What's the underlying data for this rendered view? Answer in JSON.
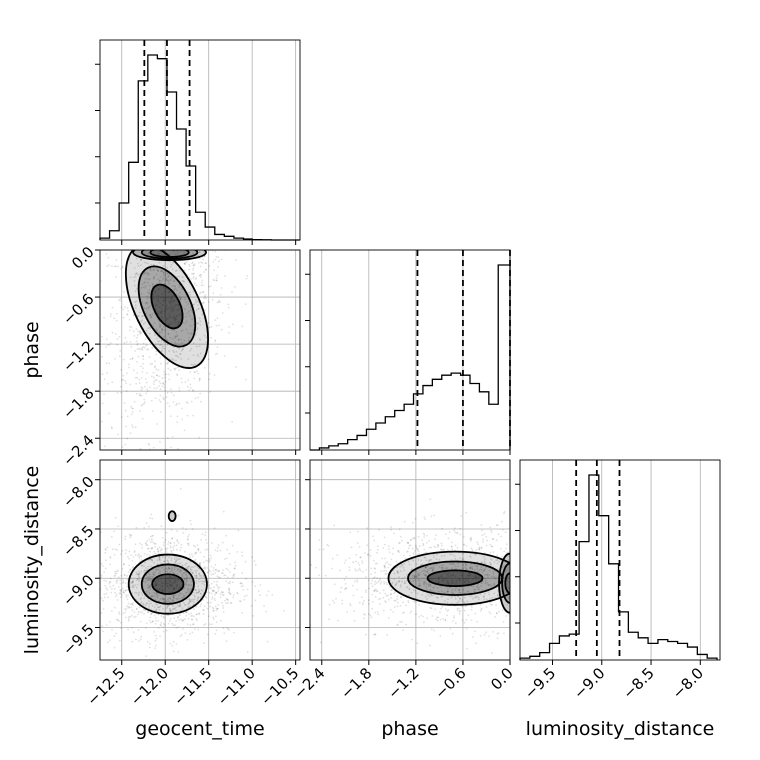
{
  "chart_data": {
    "type": "corner",
    "parameters": [
      "geocent_time",
      "phase",
      "luminosity_distance"
    ],
    "ranges": {
      "geocent_time": [
        -12.75,
        -10.45
      ],
      "phase": [
        -2.55,
        0.0
      ],
      "luminosity_distance": [
        -9.83,
        -7.8
      ]
    },
    "ticks": {
      "geocent_time": [
        "−12.5",
        "−12.0",
        "−11.5",
        "−11.0",
        "−10.5"
      ],
      "phase": [
        "−2.4",
        "−1.8",
        "−1.2",
        "−0.6",
        "0.0"
      ],
      "luminosity_distance": [
        "−9.5",
        "−9.0",
        "−8.5",
        "−8.0"
      ]
    },
    "tick_values": {
      "geocent_time": [
        -12.5,
        -12.0,
        -11.5,
        -11.0,
        -10.5
      ],
      "phase": [
        -2.4,
        -1.8,
        -1.2,
        -0.6,
        0.0
      ],
      "luminosity_distance": [
        -9.5,
        -9.0,
        -8.5,
        -8.0
      ]
    },
    "quantiles": {
      "geocent_time": [
        -12.24,
        -11.98,
        -11.72
      ],
      "phase": [
        -1.18,
        -0.6,
        0.0
      ],
      "luminosity_distance": [
        -9.26,
        -9.05,
        -8.82
      ]
    },
    "histograms": {
      "geocent_time": {
        "edges": [
          -12.75,
          -12.64,
          -12.53,
          -12.42,
          -12.31,
          -12.2,
          -12.09,
          -11.98,
          -11.87,
          -11.76,
          -11.65,
          -11.54,
          -11.43,
          -11.32,
          -11.21,
          -11.1,
          -11.0,
          -10.89,
          -10.78,
          -10.67,
          -10.56,
          -10.45
        ],
        "counts": [
          1,
          5,
          20,
          42,
          86,
          100,
          98,
          80,
          60,
          40,
          15,
          7,
          3,
          2,
          1,
          0.5,
          0.2,
          0.1,
          0,
          0,
          0
        ]
      },
      "phase": {
        "edges": [
          -2.55,
          -2.43,
          -2.31,
          -2.19,
          -2.07,
          -1.95,
          -1.83,
          -1.71,
          -1.59,
          -1.47,
          -1.35,
          -1.23,
          -1.11,
          -0.99,
          -0.87,
          -0.75,
          -0.63,
          -0.51,
          -0.39,
          -0.27,
          -0.15,
          0.0
        ],
        "counts": [
          0,
          1,
          2,
          3,
          5,
          7,
          10,
          13,
          16,
          19,
          22,
          27,
          31,
          34,
          36,
          37,
          36,
          32,
          28,
          22,
          89
        ]
      },
      "luminosity_distance": {
        "edges": [
          -9.83,
          -9.73,
          -9.63,
          -9.53,
          -9.43,
          -9.33,
          -9.23,
          -9.13,
          -9.03,
          -8.93,
          -8.83,
          -8.73,
          -8.63,
          -8.53,
          -8.43,
          -8.33,
          -8.23,
          -8.13,
          -8.03,
          -7.93,
          -7.83
        ],
        "counts": [
          1,
          2,
          4,
          9,
          13,
          14,
          64,
          100,
          78,
          52,
          26,
          15,
          12,
          9,
          11,
          10,
          9,
          7,
          3,
          1
        ]
      }
    },
    "contours_2d": [
      {
        "x": "geocent_time",
        "y": "phase",
        "center": [
          -11.98,
          -0.72
        ],
        "level_sizes": [
          [
            0.15,
            0.3
          ],
          [
            0.27,
            0.55
          ],
          [
            0.37,
            0.85
          ]
        ],
        "tilt": 0.65,
        "extra_contours": [
          {
            "center": [
              -11.95,
              -0.03
            ],
            "sizes": [
              [
                0.22,
                0.06
              ],
              [
                0.32,
                0.08
              ],
              [
                0.42,
                0.1
              ]
            ]
          }
        ]
      },
      {
        "x": "geocent_time",
        "y": "luminosity_distance",
        "center": [
          -11.97,
          -9.06
        ],
        "level_sizes": [
          [
            0.18,
            0.1
          ],
          [
            0.3,
            0.2
          ],
          [
            0.45,
            0.3
          ]
        ],
        "tilt": 0.0,
        "extra_contours": [
          {
            "center": [
              -11.92,
              -8.37
            ],
            "sizes": [
              [
                0.04,
                0.05
              ]
            ]
          }
        ]
      },
      {
        "x": "phase",
        "y": "luminosity_distance",
        "center": [
          -0.7,
          -9.0
        ],
        "level_sizes": [
          [
            0.35,
            0.08
          ],
          [
            0.6,
            0.17
          ],
          [
            0.85,
            0.27
          ]
        ],
        "tilt": 0.0,
        "extra_contours": [
          {
            "center": [
              0.0,
              -9.05
            ],
            "sizes": [
              [
                0.06,
                0.1
              ],
              [
                0.1,
                0.2
              ],
              [
                0.14,
                0.3
              ]
            ]
          }
        ]
      }
    ],
    "grid": true,
    "legend": "none"
  }
}
